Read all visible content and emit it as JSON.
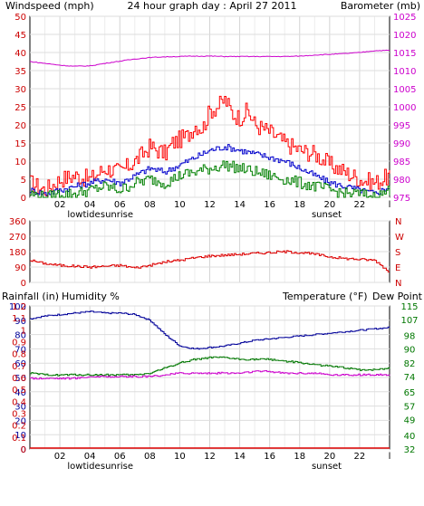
{
  "header": {
    "left_title": "Windspeed (mph)",
    "center_title": "24 hour graph day : April 27 2011",
    "right_title": "Barometer (mb)"
  },
  "colors": {
    "wind_max": "#ff0000",
    "wind_avg": "#0000cc",
    "wind_min": "#008000",
    "barometer": "#cc00cc",
    "direction": "#dd0000",
    "humidity": "#000099",
    "temperature": "#007700",
    "dewpoint": "#cc00cc",
    "rainfall": "#dd0000",
    "axis_red": "#cc0000",
    "axis_pink": "#cc00cc",
    "axis_green": "#007700",
    "axis_blue": "#000099",
    "grid": "#dddddd"
  },
  "x_axis": {
    "ticks": [
      "02",
      "04",
      "06",
      "08",
      "10",
      "12",
      "14",
      "16",
      "18",
      "20",
      "22"
    ],
    "end_tick": "l",
    "events": [
      {
        "label": "lowtide",
        "hour": 3.6
      },
      {
        "label": "sunrise",
        "hour": 5.8
      },
      {
        "label": "sunset",
        "hour": 19.8
      }
    ]
  },
  "chart_data": [
    {
      "type": "line",
      "name": "wind-barometer",
      "left_axis": {
        "ticks": [
          "0",
          "5",
          "10",
          "15",
          "20",
          "25",
          "30",
          "35",
          "40",
          "45",
          "50"
        ],
        "range": [
          0,
          50
        ]
      },
      "right_axis": {
        "ticks": [
          "975",
          "980",
          "985",
          "990",
          "995",
          "1000",
          "1005",
          "1010",
          "1015",
          "1020",
          "1025"
        ],
        "range": [
          975,
          1025
        ]
      },
      "series": [
        {
          "key": "wind_max",
          "axis": "left",
          "x": [
            0,
            1,
            2,
            3,
            4,
            5,
            6,
            7,
            8,
            9,
            9.5,
            10,
            10.5,
            11,
            11.5,
            12,
            12.5,
            13,
            13.5,
            14,
            14.5,
            15,
            16,
            17,
            18,
            19,
            20,
            21,
            22,
            23,
            24
          ],
          "y": [
            4,
            2,
            5,
            6,
            5,
            8,
            7,
            10,
            14,
            12,
            15,
            16,
            17,
            20,
            19,
            24,
            25,
            27,
            23,
            22,
            24,
            20,
            18,
            15,
            13,
            12,
            9,
            7,
            5,
            4,
            6
          ]
        },
        {
          "key": "wind_avg",
          "axis": "left",
          "x": [
            0,
            1,
            2,
            3,
            4,
            5,
            6,
            7,
            8,
            9,
            10,
            11,
            12,
            13,
            14,
            15,
            16,
            17,
            18,
            19,
            20,
            21,
            22,
            23,
            24
          ],
          "y": [
            2,
            1,
            2,
            3,
            4,
            5,
            4,
            6,
            8,
            7,
            9,
            11,
            13,
            14,
            13,
            12,
            11,
            10,
            8,
            6,
            4,
            3,
            2,
            1,
            3
          ]
        },
        {
          "key": "wind_min",
          "axis": "left",
          "x": [
            0,
            1,
            2,
            3,
            4,
            5,
            6,
            7,
            8,
            9,
            10,
            11,
            12,
            13,
            14,
            15,
            16,
            17,
            18,
            19,
            20,
            21,
            22,
            23,
            24
          ],
          "y": [
            1,
            0,
            1,
            1,
            2,
            3,
            2,
            4,
            5,
            4,
            6,
            7,
            8,
            9,
            8,
            7,
            6,
            5,
            4,
            3,
            2,
            1,
            1,
            0,
            2
          ]
        },
        {
          "key": "barometer",
          "axis": "right",
          "x": [
            0,
            1,
            2,
            3,
            4,
            5,
            6,
            7,
            8,
            9,
            10,
            11,
            12,
            13,
            14,
            15,
            16,
            17,
            18,
            19,
            20,
            21,
            22,
            23,
            24
          ],
          "y": [
            1012.5,
            1012,
            1011.5,
            1011.2,
            1011.3,
            1012,
            1012.6,
            1013.2,
            1013.6,
            1013.8,
            1013.9,
            1014,
            1014,
            1013.9,
            1013.9,
            1013.9,
            1013.9,
            1013.9,
            1014,
            1014.3,
            1014.5,
            1014.7,
            1015,
            1015.5,
            1015.6
          ]
        }
      ]
    },
    {
      "type": "line",
      "name": "wind-direction",
      "left_axis": {
        "ticks": [
          "0",
          "90",
          "180",
          "270",
          "360"
        ],
        "range": [
          0,
          360
        ]
      },
      "right_axis_labels": [
        "N",
        "W",
        "S",
        "E",
        "N"
      ],
      "series": [
        {
          "key": "direction",
          "axis": "left",
          "x": [
            0,
            1,
            2,
            3,
            4,
            5,
            6,
            7,
            8,
            9,
            10,
            11,
            12,
            13,
            14,
            15,
            16,
            17,
            18,
            19,
            20,
            21,
            22,
            23,
            24
          ],
          "y": [
            130,
            110,
            100,
            95,
            90,
            95,
            100,
            85,
            100,
            120,
            130,
            145,
            155,
            160,
            165,
            170,
            175,
            180,
            175,
            165,
            150,
            140,
            135,
            130,
            60
          ]
        }
      ]
    },
    {
      "type": "line",
      "name": "climate",
      "axis_headers": {
        "rainfall": "Rainfall (in)",
        "humidity": "Humidity %",
        "temperature": "Temperature (°F)",
        "dewpoint": "Dew Point"
      },
      "rain_axis": {
        "ticks": [
          "0",
          "0.1",
          "0.2",
          "0.3",
          "0.4",
          "0.5",
          "0.6",
          "0.7",
          "0.8",
          "0.9",
          "1",
          "1.1",
          "1.2"
        ],
        "range": [
          0,
          1.2
        ]
      },
      "humidity_axis": {
        "ticks": [
          "0",
          "10",
          "20",
          "30",
          "40",
          "50",
          "60",
          "70",
          "80",
          "90",
          "100"
        ],
        "range": [
          0,
          100
        ]
      },
      "temp_axis": {
        "ticks": [
          "32",
          "40",
          "49",
          "57",
          "65",
          "74",
          "82",
          "90",
          "98",
          "107",
          "115"
        ],
        "range": [
          32,
          115
        ]
      },
      "series": [
        {
          "key": "humidity",
          "axis": "humidity",
          "x": [
            0,
            1,
            2,
            3,
            4,
            5,
            6,
            7,
            8,
            9,
            10,
            11,
            12,
            13,
            14,
            15,
            16,
            17,
            18,
            19,
            20,
            21,
            22,
            23,
            24
          ],
          "y": [
            91,
            93,
            94,
            95,
            96,
            95,
            95,
            94,
            90,
            80,
            72,
            70,
            71,
            72,
            74,
            76,
            77,
            78,
            79,
            80,
            81,
            82,
            83,
            84,
            85
          ]
        },
        {
          "key": "temperature",
          "axis": "temp",
          "x": [
            0,
            1,
            2,
            3,
            4,
            5,
            6,
            7,
            8,
            9,
            10,
            11,
            12,
            13,
            14,
            15,
            16,
            17,
            18,
            19,
            20,
            21,
            22,
            23,
            24
          ],
          "y": [
            76,
            75,
            75,
            75,
            75,
            75,
            75,
            75,
            76,
            79,
            82,
            84,
            85,
            85,
            84,
            84,
            84,
            83,
            82,
            81,
            80,
            79,
            78,
            78,
            79
          ]
        },
        {
          "key": "dewpoint",
          "axis": "temp",
          "x": [
            0,
            1,
            2,
            3,
            4,
            5,
            6,
            7,
            8,
            9,
            10,
            11,
            12,
            13,
            14,
            15,
            16,
            17,
            18,
            19,
            20,
            21,
            22,
            23,
            24
          ],
          "y": [
            73,
            73,
            73,
            73,
            74,
            74,
            74,
            74,
            74,
            75,
            76,
            76,
            76,
            76,
            76,
            77,
            77,
            76,
            76,
            76,
            75,
            75,
            75,
            75,
            75
          ]
        },
        {
          "key": "rainfall",
          "axis": "rain",
          "x": [
            0,
            24
          ],
          "y": [
            0,
            0
          ]
        }
      ]
    }
  ]
}
